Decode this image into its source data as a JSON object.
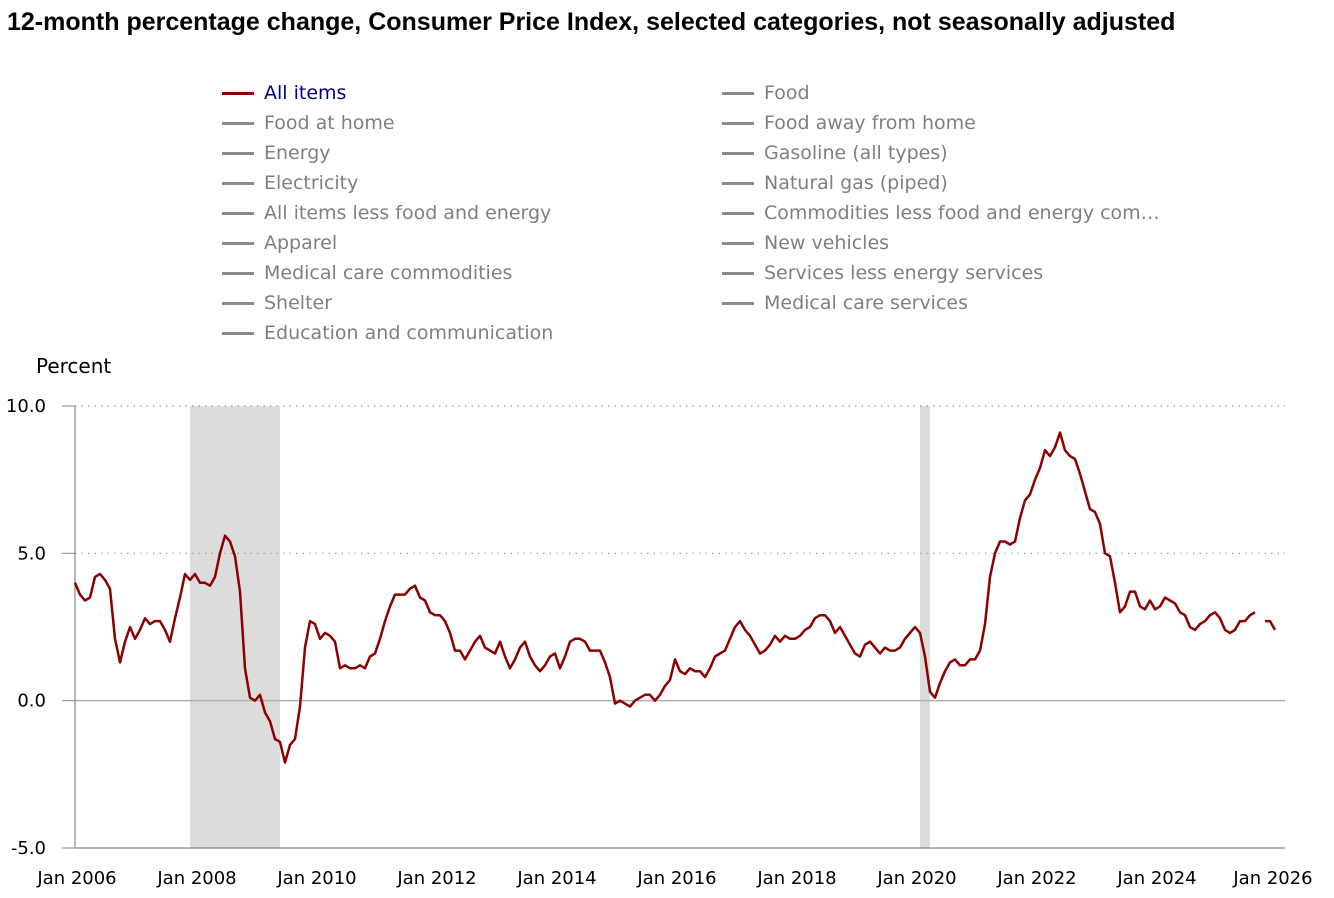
{
  "title": "12-month percentage change, Consumer Price Index, selected categories, not seasonally adjusted",
  "legend": [
    {
      "label": "All items",
      "active": true
    },
    {
      "label": "Food",
      "active": false
    },
    {
      "label": "Food at home",
      "active": false
    },
    {
      "label": "Food away from home",
      "active": false
    },
    {
      "label": "Energy",
      "active": false
    },
    {
      "label": "Gasoline (all types)",
      "active": false
    },
    {
      "label": "Electricity",
      "active": false
    },
    {
      "label": "Natural gas (piped)",
      "active": false
    },
    {
      "label": "All items less food and energy",
      "active": false
    },
    {
      "label": "Commodities less food and energy com…",
      "active": false
    },
    {
      "label": "Apparel",
      "active": false
    },
    {
      "label": "New vehicles",
      "active": false
    },
    {
      "label": "Medical care commodities",
      "active": false
    },
    {
      "label": "Services less energy services",
      "active": false
    },
    {
      "label": "Shelter",
      "active": false
    },
    {
      "label": "Medical care services",
      "active": false
    },
    {
      "label": "Education and communication",
      "active": false
    }
  ],
  "colors": {
    "series": "#8b0000",
    "recession": "#dcdcdc",
    "inactive": "#8a8a8a",
    "active_label": "#00007f"
  },
  "chart_data": {
    "type": "line",
    "ylabel": "Percent",
    "ylim": [
      -5,
      10
    ],
    "yticks": [
      "10.0",
      "5.0",
      "0.0",
      "-5.0"
    ],
    "ytick_values": [
      10,
      5,
      0,
      -5
    ],
    "xlim": [
      "2006-01",
      "2026-03"
    ],
    "xticks": [
      "Jan 2006",
      "Jan 2008",
      "Jan 2010",
      "Jan 2012",
      "Jan 2014",
      "Jan 2016",
      "Jan 2018",
      "Jan 2020",
      "Jan 2022",
      "Jan 2024",
      "Jan 2026"
    ],
    "xtick_years": [
      2006,
      2008,
      2010,
      2012,
      2014,
      2016,
      2018,
      2020,
      2022,
      2024,
      2026
    ],
    "grid": "horizontal dotted",
    "recessions": [
      {
        "start": "2007-12",
        "end": "2009-06"
      },
      {
        "start": "2020-02",
        "end": "2020-04"
      }
    ],
    "series": [
      {
        "name": "All items",
        "start": "2006-01",
        "values": [
          4.0,
          3.6,
          3.4,
          3.5,
          4.2,
          4.3,
          4.1,
          3.8,
          2.1,
          1.3,
          2.0,
          2.5,
          2.1,
          2.4,
          2.8,
          2.6,
          2.7,
          2.7,
          2.4,
          2.0,
          2.8,
          3.5,
          4.3,
          4.1,
          4.3,
          4.0,
          4.0,
          3.9,
          4.2,
          5.0,
          5.6,
          5.4,
          4.9,
          3.7,
          1.1,
          0.1,
          0.0,
          0.2,
          -0.4,
          -0.7,
          -1.3,
          -1.4,
          -2.1,
          -1.5,
          -1.3,
          -0.2,
          1.8,
          2.7,
          2.6,
          2.1,
          2.3,
          2.2,
          2.0,
          1.1,
          1.2,
          1.1,
          1.1,
          1.2,
          1.1,
          1.5,
          1.6,
          2.1,
          2.7,
          3.2,
          3.6,
          3.6,
          3.6,
          3.8,
          3.9,
          3.5,
          3.4,
          3.0,
          2.9,
          2.9,
          2.7,
          2.3,
          1.7,
          1.7,
          1.4,
          1.7,
          2.0,
          2.2,
          1.8,
          1.7,
          1.6,
          2.0,
          1.5,
          1.1,
          1.4,
          1.8,
          2.0,
          1.5,
          1.2,
          1.0,
          1.2,
          1.5,
          1.6,
          1.1,
          1.5,
          2.0,
          2.1,
          2.1,
          2.0,
          1.7,
          1.7,
          1.7,
          1.3,
          0.8,
          -0.1,
          0.0,
          -0.1,
          -0.2,
          0.0,
          0.1,
          0.2,
          0.2,
          0.0,
          0.2,
          0.5,
          0.7,
          1.4,
          1.0,
          0.9,
          1.1,
          1.0,
          1.0,
          0.8,
          1.1,
          1.5,
          1.6,
          1.7,
          2.1,
          2.5,
          2.7,
          2.4,
          2.2,
          1.9,
          1.6,
          1.7,
          1.9,
          2.2,
          2.0,
          2.2,
          2.1,
          2.1,
          2.2,
          2.4,
          2.5,
          2.8,
          2.9,
          2.9,
          2.7,
          2.3,
          2.5,
          2.2,
          1.9,
          1.6,
          1.5,
          1.9,
          2.0,
          1.8,
          1.6,
          1.8,
          1.7,
          1.7,
          1.8,
          2.1,
          2.3,
          2.5,
          2.3,
          1.5,
          0.3,
          0.1,
          0.6,
          1.0,
          1.3,
          1.4,
          1.2,
          1.2,
          1.4,
          1.4,
          1.7,
          2.6,
          4.2,
          5.0,
          5.4,
          5.4,
          5.3,
          5.4,
          6.2,
          6.8,
          7.0,
          7.5,
          7.9,
          8.5,
          8.3,
          8.6,
          9.1,
          8.5,
          8.3,
          8.2,
          7.7,
          7.1,
          6.5,
          6.4,
          6.0,
          5.0,
          4.9,
          4.0,
          3.0,
          3.2,
          3.7,
          3.7,
          3.2,
          3.1,
          3.4,
          3.1,
          3.2,
          3.5,
          3.4,
          3.3,
          3.0,
          2.9,
          2.5,
          2.4,
          2.6,
          2.7,
          2.9,
          3.0,
          2.8,
          2.4,
          2.3,
          2.4,
          2.7,
          2.7,
          2.9,
          3.0,
          null,
          2.7,
          2.7,
          2.4
        ]
      }
    ]
  }
}
